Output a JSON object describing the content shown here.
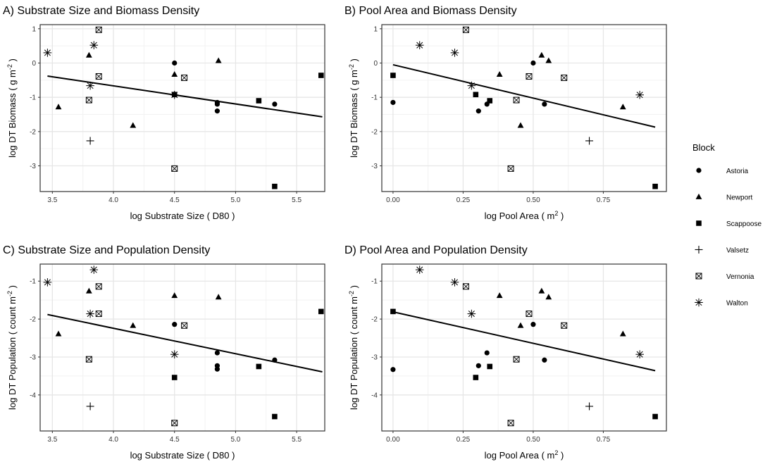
{
  "legend": {
    "title": "Block",
    "entries": [
      {
        "label": "Astoria",
        "shape": "circle"
      },
      {
        "label": "Newport",
        "shape": "triangle"
      },
      {
        "label": "Scappoose",
        "shape": "square"
      },
      {
        "label": "Valsetz",
        "shape": "plus"
      },
      {
        "label": "Vernonia",
        "shape": "boxx"
      },
      {
        "label": "Walton",
        "shape": "star"
      }
    ]
  },
  "colors": {
    "panel_bg": "#ffffff",
    "grid_major": "#e6e6e6",
    "grid_minor": "#f2f2f2",
    "border": "#333333",
    "points": "#000000",
    "line": "#000000"
  },
  "chart_data": [
    {
      "type": "scatter",
      "title": "A) Substrate Size and Biomass Density",
      "xlabel": "log Substrate Size ( D80 )",
      "ylabel": "log DT Biomass ( g m^-2 )",
      "xlim": [
        3.4,
        5.73
      ],
      "ylim": [
        -3.75,
        1.12
      ],
      "xticks": [
        3.5,
        4.0,
        4.5,
        5.0,
        5.5
      ],
      "xticklabels": [
        "3.5",
        "4.0",
        "4.5",
        "5.0",
        "5.5"
      ],
      "yticks": [
        -3,
        -2,
        -1,
        0,
        1
      ],
      "yticklabels": [
        "-3",
        "-2",
        "-1",
        "0",
        "1"
      ],
      "trend": {
        "x": [
          3.46,
          5.71
        ],
        "y": [
          -0.38,
          -1.57
        ]
      },
      "series": [
        {
          "name": "Astoria",
          "shape": "circle",
          "points": [
            [
              4.5,
              0.0
            ],
            [
              4.85,
              -1.15
            ],
            [
              4.85,
              -1.2
            ],
            [
              4.85,
              -1.4
            ],
            [
              5.32,
              -1.2
            ]
          ]
        },
        {
          "name": "Newport",
          "shape": "triangle",
          "points": [
            [
              3.55,
              -1.28
            ],
            [
              3.8,
              0.23
            ],
            [
              4.16,
              -1.82
            ],
            [
              4.5,
              -0.33
            ],
            [
              4.86,
              0.07
            ]
          ]
        },
        {
          "name": "Scappoose",
          "shape": "square",
          "points": [
            [
              4.5,
              -0.92
            ],
            [
              5.19,
              -1.1
            ],
            [
              5.32,
              -3.6
            ],
            [
              5.7,
              -0.36
            ]
          ]
        },
        {
          "name": "Valsetz",
          "shape": "plus",
          "points": [
            [
              3.81,
              -2.27
            ]
          ]
        },
        {
          "name": "Vernonia",
          "shape": "boxx",
          "points": [
            [
              3.88,
              0.97
            ],
            [
              3.88,
              -0.39
            ],
            [
              3.8,
              -1.08
            ],
            [
              4.58,
              -0.43
            ],
            [
              4.5,
              -3.08
            ]
          ]
        },
        {
          "name": "Walton",
          "shape": "star",
          "points": [
            [
              3.46,
              0.3
            ],
            [
              3.84,
              0.52
            ],
            [
              3.81,
              -0.66
            ],
            [
              4.5,
              -0.93
            ]
          ]
        }
      ]
    },
    {
      "type": "scatter",
      "title": "B) Pool Area and Biomass Density",
      "xlabel": "log Pool Area ( m^2 )",
      "ylabel": "log DT Biomass ( g m^-2 )",
      "xlim": [
        -0.04,
        0.975
      ],
      "ylim": [
        -3.75,
        1.12
      ],
      "xticks": [
        0,
        0.25,
        0.5,
        0.75
      ],
      "xticklabels": [
        "0.00",
        "0.25",
        "0.50",
        "0.75"
      ],
      "yticks": [
        -3,
        -2,
        -1,
        0,
        1
      ],
      "yticklabels": [
        "-3",
        "-2",
        "-1",
        "0",
        "1"
      ],
      "trend": {
        "x": [
          0.0,
          0.935
        ],
        "y": [
          -0.05,
          -1.87
        ]
      },
      "series": [
        {
          "name": "Astoria",
          "shape": "circle",
          "points": [
            [
              0.0,
              -1.15
            ],
            [
              0.305,
              -1.4
            ],
            [
              0.335,
              -1.2
            ],
            [
              0.5,
              0.0
            ],
            [
              0.54,
              -1.2
            ]
          ]
        },
        {
          "name": "Newport",
          "shape": "triangle",
          "points": [
            [
              0.38,
              -0.33
            ],
            [
              0.455,
              -1.82
            ],
            [
              0.53,
              0.23
            ],
            [
              0.555,
              0.07
            ],
            [
              0.82,
              -1.28
            ]
          ]
        },
        {
          "name": "Scappoose",
          "shape": "square",
          "points": [
            [
              0.0,
              -0.36
            ],
            [
              0.295,
              -0.92
            ],
            [
              0.345,
              -1.1
            ],
            [
              0.935,
              -3.6
            ]
          ]
        },
        {
          "name": "Valsetz",
          "shape": "plus",
          "points": [
            [
              0.7,
              -2.27
            ]
          ]
        },
        {
          "name": "Vernonia",
          "shape": "boxx",
          "points": [
            [
              0.26,
              0.97
            ],
            [
              0.42,
              -3.08
            ],
            [
              0.44,
              -1.08
            ],
            [
              0.485,
              -0.39
            ],
            [
              0.61,
              -0.43
            ]
          ]
        },
        {
          "name": "Walton",
          "shape": "star",
          "points": [
            [
              0.095,
              0.52
            ],
            [
              0.22,
              0.3
            ],
            [
              0.28,
              -0.66
            ],
            [
              0.88,
              -0.93
            ]
          ]
        }
      ]
    },
    {
      "type": "scatter",
      "title": "C) Substrate Size and Population Density",
      "xlabel": "log Substrate Size ( D80 )",
      "ylabel": "log DT Population ( count m^-2 )",
      "xlim": [
        3.4,
        5.73
      ],
      "ylim": [
        -4.95,
        -0.55
      ],
      "xticks": [
        3.5,
        4.0,
        4.5,
        5.0,
        5.5
      ],
      "xticklabels": [
        "3.5",
        "4.0",
        "4.5",
        "5.0",
        "5.5"
      ],
      "yticks": [
        -4,
        -3,
        -2,
        -1
      ],
      "yticklabels": [
        "-4",
        "-3",
        "-2",
        "-1"
      ],
      "trend": {
        "x": [
          3.46,
          5.71
        ],
        "y": [
          -1.88,
          -3.39
        ]
      },
      "series": [
        {
          "name": "Astoria",
          "shape": "circle",
          "points": [
            [
              4.5,
              -2.14
            ],
            [
              4.85,
              -2.89
            ],
            [
              4.85,
              -3.23
            ],
            [
              4.85,
              -3.32
            ],
            [
              5.32,
              -3.08
            ]
          ]
        },
        {
          "name": "Newport",
          "shape": "triangle",
          "points": [
            [
              3.55,
              -2.39
            ],
            [
              3.8,
              -1.26
            ],
            [
              4.16,
              -2.17
            ],
            [
              4.5,
              -1.38
            ],
            [
              4.86,
              -1.42
            ]
          ]
        },
        {
          "name": "Scappoose",
          "shape": "square",
          "points": [
            [
              4.5,
              -3.54
            ],
            [
              5.19,
              -3.25
            ],
            [
              5.32,
              -4.57
            ],
            [
              5.7,
              -1.8
            ]
          ]
        },
        {
          "name": "Valsetz",
          "shape": "plus",
          "points": [
            [
              3.81,
              -4.3
            ]
          ]
        },
        {
          "name": "Vernonia",
          "shape": "boxx",
          "points": [
            [
              3.88,
              -1.14
            ],
            [
              3.88,
              -1.86
            ],
            [
              3.8,
              -3.06
            ],
            [
              4.58,
              -2.17
            ],
            [
              4.5,
              -4.74
            ]
          ]
        },
        {
          "name": "Walton",
          "shape": "star",
          "points": [
            [
              3.46,
              -1.03
            ],
            [
              3.84,
              -0.7
            ],
            [
              3.81,
              -1.86
            ],
            [
              4.5,
              -2.93
            ]
          ]
        }
      ]
    },
    {
      "type": "scatter",
      "title": "D) Pool Area and Population Density",
      "xlabel": "log Pool Area ( m^2 )",
      "ylabel": "log DT Population ( count m^-2 )",
      "xlim": [
        -0.04,
        0.975
      ],
      "ylim": [
        -4.95,
        -0.55
      ],
      "xticks": [
        0,
        0.25,
        0.5,
        0.75
      ],
      "xticklabels": [
        "0.00",
        "0.25",
        "0.50",
        "0.75"
      ],
      "yticks": [
        -4,
        -3,
        -2,
        -1
      ],
      "yticklabels": [
        "-4",
        "-3",
        "-2",
        "-1"
      ],
      "trend": {
        "x": [
          0.0,
          0.935
        ],
        "y": [
          -1.81,
          -3.36
        ]
      },
      "series": [
        {
          "name": "Astoria",
          "shape": "circle",
          "points": [
            [
              0.0,
              -3.33
            ],
            [
              0.305,
              -3.23
            ],
            [
              0.335,
              -2.89
            ],
            [
              0.5,
              -2.14
            ],
            [
              0.54,
              -3.08
            ]
          ]
        },
        {
          "name": "Newport",
          "shape": "triangle",
          "points": [
            [
              0.38,
              -1.38
            ],
            [
              0.455,
              -2.17
            ],
            [
              0.53,
              -1.26
            ],
            [
              0.555,
              -1.42
            ],
            [
              0.82,
              -2.39
            ]
          ]
        },
        {
          "name": "Scappoose",
          "shape": "square",
          "points": [
            [
              0.0,
              -1.8
            ],
            [
              0.295,
              -3.54
            ],
            [
              0.345,
              -3.25
            ],
            [
              0.935,
              -4.57
            ]
          ]
        },
        {
          "name": "Valsetz",
          "shape": "plus",
          "points": [
            [
              0.7,
              -4.3
            ]
          ]
        },
        {
          "name": "Vernonia",
          "shape": "boxx",
          "points": [
            [
              0.26,
              -1.14
            ],
            [
              0.42,
              -4.74
            ],
            [
              0.44,
              -3.06
            ],
            [
              0.485,
              -1.86
            ],
            [
              0.61,
              -2.17
            ]
          ]
        },
        {
          "name": "Walton",
          "shape": "star",
          "points": [
            [
              0.095,
              -0.7
            ],
            [
              0.22,
              -1.03
            ],
            [
              0.28,
              -1.86
            ],
            [
              0.88,
              -2.93
            ]
          ]
        }
      ]
    }
  ]
}
